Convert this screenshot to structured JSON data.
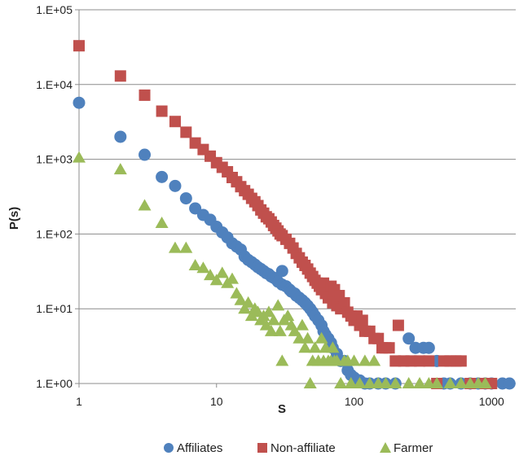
{
  "chart_data": {
    "type": "scatter",
    "x_scale": "log",
    "y_scale": "log",
    "xlabel": "S",
    "ylabel": "P(s)",
    "xlim": [
      1,
      1500
    ],
    "ylim": [
      1,
      100000
    ],
    "x_ticks": [
      {
        "value": 1,
        "label": "1"
      },
      {
        "value": 10,
        "label": "10"
      },
      {
        "value": 100,
        "label": "100"
      },
      {
        "value": 1000,
        "label": "1000"
      }
    ],
    "y_ticks": [
      {
        "value": 1,
        "label": "1.E+00"
      },
      {
        "value": 10,
        "label": "1.E+01"
      },
      {
        "value": 100,
        "label": "1.E+02"
      },
      {
        "value": 1000,
        "label": "1.E+03"
      },
      {
        "value": 10000,
        "label": "1.E+04"
      },
      {
        "value": 100000,
        "label": "1.E+05"
      }
    ],
    "grid": "horizontal",
    "legend_position": "bottom",
    "series": [
      {
        "name": "Affiliates",
        "marker": "circle",
        "color": "#4f81bd",
        "points": [
          [
            1,
            5700
          ],
          [
            2,
            2000
          ],
          [
            3,
            1150
          ],
          [
            4,
            580
          ],
          [
            5,
            440
          ],
          [
            6,
            300
          ],
          [
            7,
            220
          ],
          [
            8,
            180
          ],
          [
            9,
            155
          ],
          [
            10,
            125
          ],
          [
            11,
            105
          ],
          [
            12,
            90
          ],
          [
            13,
            75
          ],
          [
            14,
            68
          ],
          [
            15,
            62
          ],
          [
            16,
            50
          ],
          [
            17,
            45
          ],
          [
            18,
            42
          ],
          [
            19,
            39
          ],
          [
            20,
            36
          ],
          [
            21,
            34
          ],
          [
            22,
            32
          ],
          [
            23,
            30
          ],
          [
            24,
            29
          ],
          [
            25,
            27
          ],
          [
            26,
            26
          ],
          [
            27,
            25
          ],
          [
            28,
            23
          ],
          [
            30,
            32
          ],
          [
            30,
            21
          ],
          [
            32,
            20
          ],
          [
            34,
            18
          ],
          [
            35,
            17
          ],
          [
            37,
            16
          ],
          [
            38,
            15
          ],
          [
            40,
            14
          ],
          [
            42,
            13
          ],
          [
            44,
            12
          ],
          [
            46,
            11
          ],
          [
            48,
            10
          ],
          [
            50,
            9
          ],
          [
            52,
            8
          ],
          [
            55,
            7
          ],
          [
            58,
            6
          ],
          [
            60,
            5
          ],
          [
            62,
            4.5
          ],
          [
            65,
            4
          ],
          [
            68,
            3.5
          ],
          [
            70,
            3
          ],
          [
            75,
            2.5
          ],
          [
            80,
            2
          ],
          [
            85,
            2
          ],
          [
            90,
            1.5
          ],
          [
            95,
            1.3
          ],
          [
            100,
            1.2
          ],
          [
            110,
            1.1
          ],
          [
            120,
            1
          ],
          [
            130,
            1
          ],
          [
            150,
            1
          ],
          [
            170,
            1
          ],
          [
            200,
            1
          ],
          [
            250,
            4
          ],
          [
            280,
            3
          ],
          [
            320,
            3
          ],
          [
            350,
            3
          ],
          [
            400,
            2
          ],
          [
            450,
            1
          ],
          [
            500,
            1
          ],
          [
            600,
            1
          ],
          [
            700,
            1
          ],
          [
            800,
            1
          ],
          [
            900,
            1
          ],
          [
            1000,
            1
          ],
          [
            1200,
            1
          ],
          [
            1350,
            1
          ]
        ]
      },
      {
        "name": "Non-affiliate",
        "marker": "square",
        "color": "#c0504d",
        "points": [
          [
            1,
            33000
          ],
          [
            2,
            13000
          ],
          [
            3,
            7200
          ],
          [
            4,
            4400
          ],
          [
            5,
            3200
          ],
          [
            6,
            2300
          ],
          [
            7,
            1650
          ],
          [
            8,
            1350
          ],
          [
            9,
            1100
          ],
          [
            10,
            900
          ],
          [
            11,
            780
          ],
          [
            12,
            680
          ],
          [
            13,
            570
          ],
          [
            14,
            500
          ],
          [
            15,
            430
          ],
          [
            16,
            380
          ],
          [
            17,
            340
          ],
          [
            18,
            300
          ],
          [
            19,
            270
          ],
          [
            20,
            240
          ],
          [
            21,
            210
          ],
          [
            22,
            190
          ],
          [
            23,
            170
          ],
          [
            24,
            160
          ],
          [
            25,
            145
          ],
          [
            26,
            130
          ],
          [
            27,
            120
          ],
          [
            28,
            110
          ],
          [
            29,
            100
          ],
          [
            30,
            95
          ],
          [
            32,
            85
          ],
          [
            34,
            75
          ],
          [
            36,
            65
          ],
          [
            38,
            55
          ],
          [
            40,
            48
          ],
          [
            42,
            42
          ],
          [
            44,
            38
          ],
          [
            46,
            34
          ],
          [
            48,
            30
          ],
          [
            50,
            27
          ],
          [
            52,
            24
          ],
          [
            54,
            22
          ],
          [
            56,
            20
          ],
          [
            58,
            18
          ],
          [
            60,
            22
          ],
          [
            62,
            16
          ],
          [
            65,
            14
          ],
          [
            68,
            20
          ],
          [
            70,
            12
          ],
          [
            72,
            18
          ],
          [
            75,
            11
          ],
          [
            78,
            15
          ],
          [
            80,
            10
          ],
          [
            85,
            12
          ],
          [
            90,
            9
          ],
          [
            95,
            8
          ],
          [
            100,
            7
          ],
          [
            105,
            8
          ],
          [
            110,
            6
          ],
          [
            115,
            7
          ],
          [
            120,
            5
          ],
          [
            130,
            5
          ],
          [
            140,
            4
          ],
          [
            150,
            4
          ],
          [
            160,
            3
          ],
          [
            170,
            3
          ],
          [
            180,
            3
          ],
          [
            200,
            2
          ],
          [
            210,
            6
          ],
          [
            230,
            2
          ],
          [
            260,
            2
          ],
          [
            300,
            2
          ],
          [
            350,
            2
          ],
          [
            400,
            1
          ],
          [
            450,
            2
          ],
          [
            500,
            2
          ],
          [
            550,
            2
          ],
          [
            600,
            2
          ],
          [
            700,
            1
          ],
          [
            900,
            1
          ],
          [
            1000,
            1
          ]
        ]
      },
      {
        "name": "Farmer",
        "marker": "triangle",
        "color": "#9bbb59",
        "points": [
          [
            1,
            1050
          ],
          [
            2,
            730
          ],
          [
            3,
            240
          ],
          [
            4,
            140
          ],
          [
            5,
            65
          ],
          [
            6,
            65
          ],
          [
            7,
            38
          ],
          [
            8,
            35
          ],
          [
            9,
            28
          ],
          [
            10,
            24
          ],
          [
            11,
            30
          ],
          [
            12,
            22
          ],
          [
            13,
            25
          ],
          [
            14,
            16
          ],
          [
            15,
            13
          ],
          [
            16,
            10
          ],
          [
            17,
            12
          ],
          [
            18,
            8
          ],
          [
            19,
            10
          ],
          [
            20,
            9
          ],
          [
            21,
            7
          ],
          [
            22,
            8
          ],
          [
            23,
            6
          ],
          [
            24,
            9
          ],
          [
            25,
            5
          ],
          [
            26,
            7
          ],
          [
            28,
            11
          ],
          [
            29,
            5
          ],
          [
            30,
            2
          ],
          [
            31,
            7
          ],
          [
            33,
            8
          ],
          [
            35,
            6
          ],
          [
            37,
            5
          ],
          [
            40,
            4
          ],
          [
            42,
            6
          ],
          [
            44,
            3
          ],
          [
            46,
            4
          ],
          [
            48,
            1
          ],
          [
            50,
            2
          ],
          [
            52,
            3
          ],
          [
            55,
            2
          ],
          [
            58,
            4
          ],
          [
            60,
            2
          ],
          [
            62,
            3
          ],
          [
            65,
            2
          ],
          [
            68,
            2
          ],
          [
            70,
            3
          ],
          [
            72,
            2
          ],
          [
            75,
            2
          ],
          [
            80,
            1
          ],
          [
            85,
            2
          ],
          [
            90,
            2
          ],
          [
            95,
            1
          ],
          [
            100,
            2
          ],
          [
            110,
            1
          ],
          [
            120,
            2
          ],
          [
            130,
            1
          ],
          [
            140,
            2
          ],
          [
            150,
            1
          ],
          [
            170,
            1
          ],
          [
            200,
            1
          ],
          [
            250,
            1
          ],
          [
            300,
            1
          ],
          [
            350,
            1
          ],
          [
            400,
            1
          ],
          [
            500,
            1
          ],
          [
            600,
            1
          ],
          [
            700,
            1
          ],
          [
            800,
            1
          ],
          [
            900,
            1
          ]
        ]
      }
    ]
  }
}
